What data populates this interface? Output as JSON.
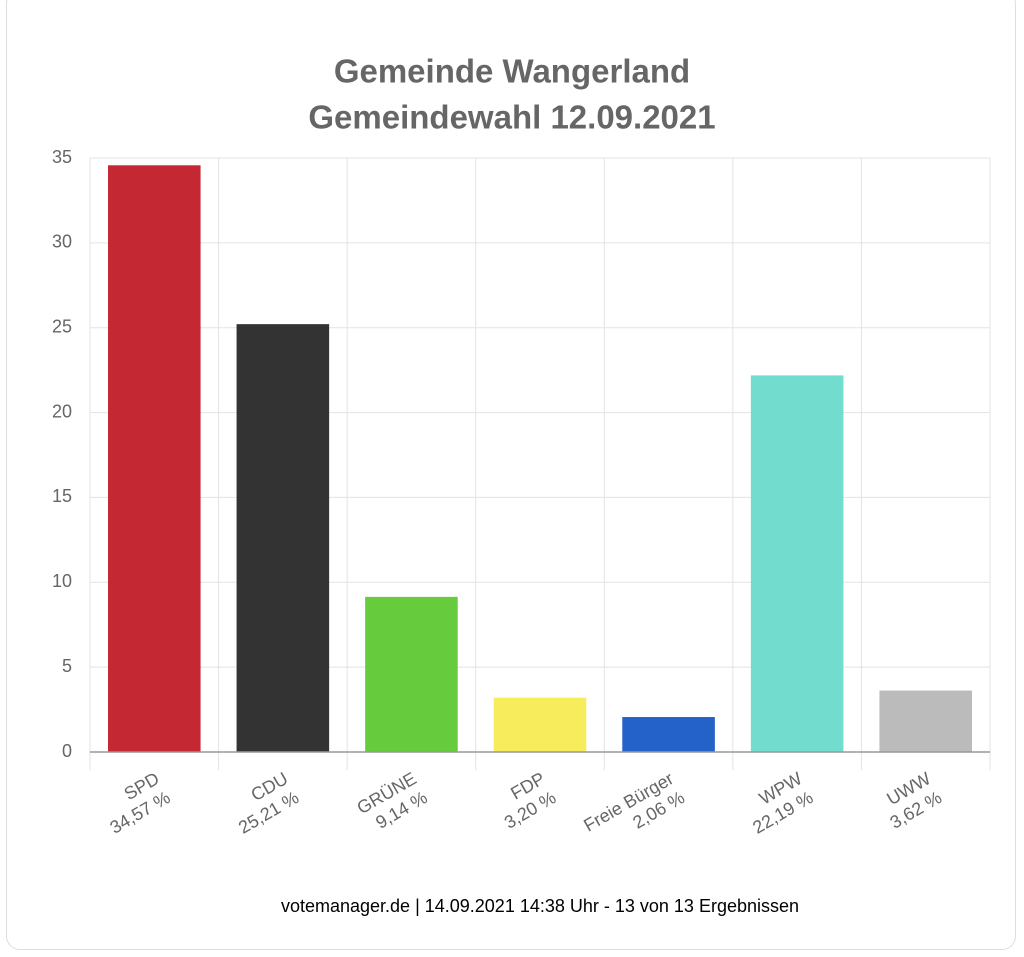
{
  "chart_data": {
    "type": "bar",
    "title": "Gemeinde Wangerland",
    "subtitle": "Gemeindewahl 12.09.2021",
    "categories": [
      "SPD",
      "CDU",
      "GRÜNE",
      "FDP",
      "Freie Bürger",
      "WPW",
      "UWW"
    ],
    "values": [
      34.57,
      25.21,
      9.14,
      3.2,
      2.06,
      22.19,
      3.62
    ],
    "value_labels": [
      "34,57 %",
      "25,21 %",
      "9,14 %",
      "3,20 %",
      "2,06 %",
      "22,19 %",
      "3,62 %"
    ],
    "colors": [
      "#c42832",
      "#333333",
      "#66cc3e",
      "#f7ed5c",
      "#2461c8",
      "#72dccf",
      "#bbbbbb"
    ],
    "ylim": [
      0,
      35
    ],
    "yticks": [
      0,
      5,
      10,
      15,
      20,
      25,
      30,
      35
    ],
    "grid": true,
    "footer": "votemanager.de | 14.09.2021 14:38 Uhr - 13 von 13 Ergebnissen"
  }
}
